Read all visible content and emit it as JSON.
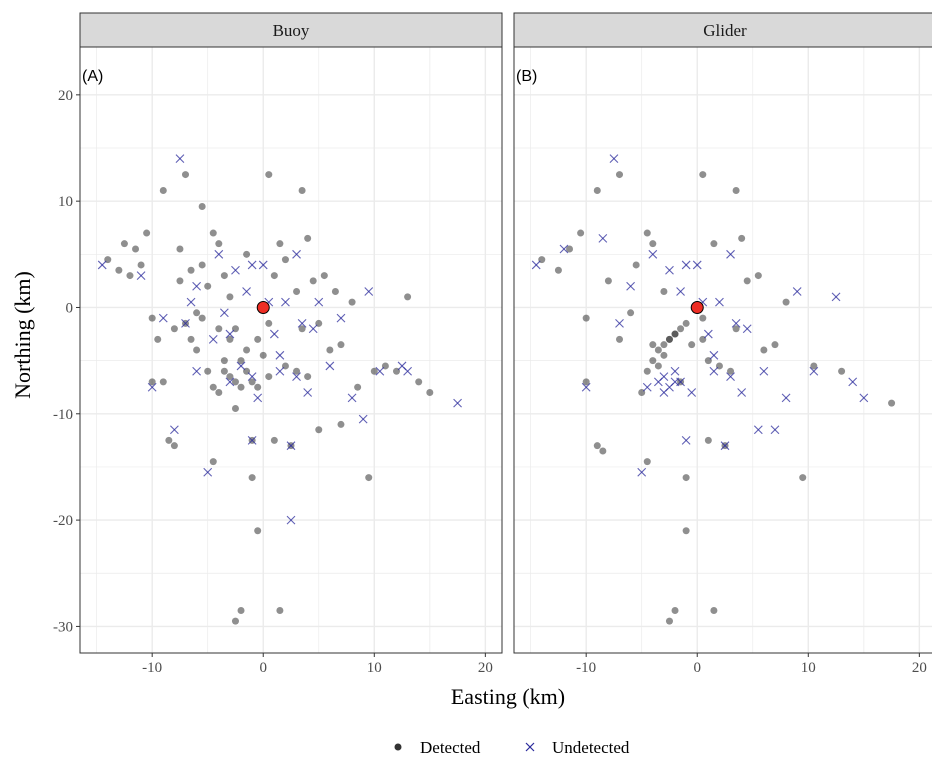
{
  "chart_data": {
    "type": "scatter",
    "xlabel": "Easting (km)",
    "ylabel": "Northing (km)",
    "xlim": [
      -16.5,
      21.5
    ],
    "ylim": [
      -32.5,
      24.5
    ],
    "x_ticks": [
      -10,
      0,
      10,
      20
    ],
    "y_ticks": [
      20,
      10,
      0,
      -10,
      -20,
      -30
    ],
    "grid": true,
    "legend_position": "bottom",
    "legend": [
      {
        "label": "Detected",
        "shape": "circle"
      },
      {
        "label": "Undetected",
        "shape": "cross"
      }
    ],
    "colors": {
      "detected": "#333333",
      "undetected": "#2b2b9c",
      "center": "#ee2d24",
      "strip_bg": "#d9d9d9",
      "grid": "#ebebeb"
    },
    "center_point": {
      "x": 0,
      "y": 0
    },
    "facets": [
      {
        "strip": "Buoy",
        "label": "(A)",
        "detected": [
          [
            -14.0,
            4.5
          ],
          [
            -13.0,
            3.5
          ],
          [
            -12.5,
            6.0
          ],
          [
            -11.5,
            5.5
          ],
          [
            -11.0,
            4.0
          ],
          [
            -10.5,
            7.0
          ],
          [
            -10.0,
            -1.0
          ],
          [
            -10.0,
            -7.0
          ],
          [
            -9.5,
            -3.0
          ],
          [
            -9.0,
            -7.0
          ],
          [
            -9.0,
            11.0
          ],
          [
            -8.5,
            -12.5
          ],
          [
            -8.0,
            -13.0
          ],
          [
            -8.0,
            -2.0
          ],
          [
            -7.5,
            2.5
          ],
          [
            -7.0,
            12.5
          ],
          [
            -7.0,
            -1.5
          ],
          [
            -6.5,
            3.5
          ],
          [
            -6.0,
            -0.5
          ],
          [
            -6.0,
            -4.0
          ],
          [
            -5.5,
            4.0
          ],
          [
            -5.5,
            9.5
          ],
          [
            -5.0,
            2.0
          ],
          [
            -5.0,
            -6.0
          ],
          [
            -4.5,
            -7.5
          ],
          [
            -4.5,
            7.0
          ],
          [
            -4.5,
            -14.5
          ],
          [
            -4.0,
            6.0
          ],
          [
            -4.0,
            -2.0
          ],
          [
            -3.5,
            -5.0
          ],
          [
            -3.5,
            3.0
          ],
          [
            -3.0,
            -6.5
          ],
          [
            -3.0,
            -3.0
          ],
          [
            -3.0,
            1.0
          ],
          [
            -2.5,
            -7.0
          ],
          [
            -2.5,
            -9.5
          ],
          [
            -2.5,
            -29.5
          ],
          [
            -2.0,
            -28.5
          ],
          [
            -2.0,
            -5.0
          ],
          [
            -2.0,
            -7.5
          ],
          [
            -1.5,
            -6.0
          ],
          [
            -1.5,
            5.0
          ],
          [
            -1.0,
            -16.0
          ],
          [
            -1.0,
            -12.5
          ],
          [
            -1.0,
            -7.0
          ],
          [
            -0.5,
            -21.0
          ],
          [
            -0.5,
            -3.0
          ],
          [
            0.0,
            -4.5
          ],
          [
            0.5,
            12.5
          ],
          [
            0.5,
            -1.5
          ],
          [
            1.0,
            -12.5
          ],
          [
            1.0,
            3.0
          ],
          [
            1.5,
            6.0
          ],
          [
            1.5,
            -28.5
          ],
          [
            2.0,
            -5.5
          ],
          [
            2.0,
            4.5
          ],
          [
            2.5,
            -13.0
          ],
          [
            3.0,
            -6.0
          ],
          [
            3.0,
            1.5
          ],
          [
            3.5,
            11.0
          ],
          [
            3.5,
            -2.0
          ],
          [
            4.0,
            -6.5
          ],
          [
            4.0,
            6.5
          ],
          [
            4.5,
            2.5
          ],
          [
            5.0,
            -11.5
          ],
          [
            5.0,
            -1.5
          ],
          [
            5.5,
            3.0
          ],
          [
            6.0,
            -4.0
          ],
          [
            6.5,
            1.5
          ],
          [
            7.0,
            -11.0
          ],
          [
            7.0,
            -3.5
          ],
          [
            8.0,
            0.5
          ],
          [
            8.5,
            -7.5
          ],
          [
            9.5,
            -16.0
          ],
          [
            10.0,
            -6.0
          ],
          [
            11.0,
            -5.5
          ],
          [
            12.0,
            -6.0
          ],
          [
            13.0,
            1.0
          ],
          [
            14.0,
            -7.0
          ],
          [
            15.0,
            -8.0
          ],
          [
            -12.0,
            3.0
          ],
          [
            -7.5,
            5.5
          ],
          [
            -6.5,
            -3.0
          ],
          [
            -5.5,
            -1.0
          ],
          [
            -4.0,
            -8.0
          ],
          [
            -3.5,
            -6.0
          ],
          [
            -2.5,
            -2.0
          ],
          [
            -1.5,
            -4.0
          ],
          [
            -0.5,
            -7.5
          ],
          [
            0.5,
            -6.5
          ]
        ],
        "undetected": [
          [
            -14.5,
            4.0
          ],
          [
            -11.0,
            3.0
          ],
          [
            -10.0,
            -7.5
          ],
          [
            -8.0,
            -11.5
          ],
          [
            -7.5,
            14.0
          ],
          [
            -7.0,
            -1.5
          ],
          [
            -6.5,
            0.5
          ],
          [
            -6.0,
            2.0
          ],
          [
            -5.0,
            -15.5
          ],
          [
            -4.5,
            -3.0
          ],
          [
            -4.0,
            5.0
          ],
          [
            -3.5,
            -0.5
          ],
          [
            -3.0,
            -2.5
          ],
          [
            -2.5,
            3.5
          ],
          [
            -2.0,
            -5.5
          ],
          [
            -1.5,
            1.5
          ],
          [
            -1.0,
            -12.5
          ],
          [
            -1.0,
            4.0
          ],
          [
            -0.5,
            -8.5
          ],
          [
            0.0,
            4.0
          ],
          [
            0.5,
            0.5
          ],
          [
            1.0,
            -2.5
          ],
          [
            1.5,
            -4.5
          ],
          [
            2.0,
            0.5
          ],
          [
            2.5,
            -20.0
          ],
          [
            2.5,
            -13.0
          ],
          [
            3.0,
            5.0
          ],
          [
            3.5,
            -1.5
          ],
          [
            4.0,
            -8.0
          ],
          [
            4.5,
            -2.0
          ],
          [
            5.0,
            0.5
          ],
          [
            6.0,
            -5.5
          ],
          [
            7.0,
            -1.0
          ],
          [
            8.0,
            -8.5
          ],
          [
            9.0,
            -10.5
          ],
          [
            9.5,
            1.5
          ],
          [
            10.5,
            -6.0
          ],
          [
            12.5,
            -5.5
          ],
          [
            13.0,
            -6.0
          ],
          [
            17.5,
            -9.0
          ],
          [
            -9.0,
            -1.0
          ],
          [
            -6.0,
            -6.0
          ],
          [
            -3.0,
            -7.0
          ],
          [
            -1.0,
            -6.5
          ],
          [
            1.5,
            -6.0
          ],
          [
            3.0,
            -6.5
          ]
        ]
      },
      {
        "strip": "Glider",
        "label": "(B)",
        "detected": [
          [
            -14.0,
            4.5
          ],
          [
            -12.5,
            3.5
          ],
          [
            -11.5,
            5.5
          ],
          [
            -10.5,
            7.0
          ],
          [
            -10.0,
            -1.0
          ],
          [
            -10.0,
            -7.0
          ],
          [
            -9.0,
            -13.0
          ],
          [
            -9.0,
            11.0
          ],
          [
            -8.5,
            -13.5
          ],
          [
            -8.0,
            2.5
          ],
          [
            -7.0,
            12.5
          ],
          [
            -7.0,
            -3.0
          ],
          [
            -6.0,
            -0.5
          ],
          [
            -5.5,
            4.0
          ],
          [
            -5.0,
            -8.0
          ],
          [
            -4.5,
            7.0
          ],
          [
            -4.5,
            -14.5
          ],
          [
            -4.0,
            6.0
          ],
          [
            -4.0,
            -3.5
          ],
          [
            -3.5,
            -5.5
          ],
          [
            -3.0,
            -4.5
          ],
          [
            -3.0,
            1.5
          ],
          [
            -2.5,
            -3.0
          ],
          [
            -2.5,
            -29.5
          ],
          [
            -2.0,
            -28.5
          ],
          [
            -2.0,
            -2.5
          ],
          [
            -1.5,
            -7.0
          ],
          [
            -1.0,
            -16.0
          ],
          [
            -1.0,
            -21.0
          ],
          [
            -0.5,
            -3.5
          ],
          [
            0.5,
            12.5
          ],
          [
            0.5,
            -1.0
          ],
          [
            1.0,
            -12.5
          ],
          [
            1.5,
            6.0
          ],
          [
            1.5,
            -28.5
          ],
          [
            2.0,
            -5.5
          ],
          [
            2.5,
            -13.0
          ],
          [
            3.0,
            -6.0
          ],
          [
            3.5,
            11.0
          ],
          [
            3.5,
            -2.0
          ],
          [
            4.0,
            6.5
          ],
          [
            4.5,
            2.5
          ],
          [
            5.5,
            3.0
          ],
          [
            6.0,
            -4.0
          ],
          [
            7.0,
            -3.5
          ],
          [
            8.0,
            0.5
          ],
          [
            9.5,
            -16.0
          ],
          [
            10.5,
            -5.5
          ],
          [
            13.0,
            -6.0
          ],
          [
            17.5,
            -9.0
          ],
          [
            -4.5,
            -6.0
          ],
          [
            -4.0,
            -5.0
          ],
          [
            -3.5,
            -4.0
          ],
          [
            -3.0,
            -3.5
          ],
          [
            -2.5,
            -3.0
          ],
          [
            -2.0,
            -2.5
          ],
          [
            -1.5,
            -2.0
          ],
          [
            -1.0,
            -1.5
          ],
          [
            0.5,
            -3.0
          ],
          [
            1.0,
            -5.0
          ]
        ],
        "undetected": [
          [
            -14.5,
            4.0
          ],
          [
            -12.0,
            5.5
          ],
          [
            -10.0,
            -7.5
          ],
          [
            -8.5,
            6.5
          ],
          [
            -7.5,
            14.0
          ],
          [
            -7.0,
            -1.5
          ],
          [
            -6.0,
            2.0
          ],
          [
            -5.0,
            -15.5
          ],
          [
            -4.5,
            -7.5
          ],
          [
            -4.0,
            5.0
          ],
          [
            -3.5,
            -7.0
          ],
          [
            -3.0,
            -6.5
          ],
          [
            -2.5,
            3.5
          ],
          [
            -2.0,
            -7.0
          ],
          [
            -1.5,
            1.5
          ],
          [
            -1.0,
            -12.5
          ],
          [
            -1.0,
            4.0
          ],
          [
            -0.5,
            -8.0
          ],
          [
            0.0,
            4.0
          ],
          [
            0.5,
            0.5
          ],
          [
            1.0,
            -2.5
          ],
          [
            1.5,
            -4.5
          ],
          [
            2.0,
            0.5
          ],
          [
            2.5,
            -13.0
          ],
          [
            3.0,
            5.0
          ],
          [
            3.5,
            -1.5
          ],
          [
            4.0,
            -8.0
          ],
          [
            4.5,
            -2.0
          ],
          [
            5.5,
            -11.5
          ],
          [
            6.0,
            -6.0
          ],
          [
            7.0,
            -11.5
          ],
          [
            8.0,
            -8.5
          ],
          [
            9.0,
            1.5
          ],
          [
            10.5,
            -6.0
          ],
          [
            12.5,
            1.0
          ],
          [
            14.0,
            -7.0
          ],
          [
            15.0,
            -8.5
          ],
          [
            -2.5,
            -7.5
          ],
          [
            -2.0,
            -6.0
          ],
          [
            -1.5,
            -7.0
          ],
          [
            -3.0,
            -8.0
          ],
          [
            1.5,
            -6.0
          ],
          [
            3.0,
            -6.5
          ]
        ]
      }
    ]
  }
}
